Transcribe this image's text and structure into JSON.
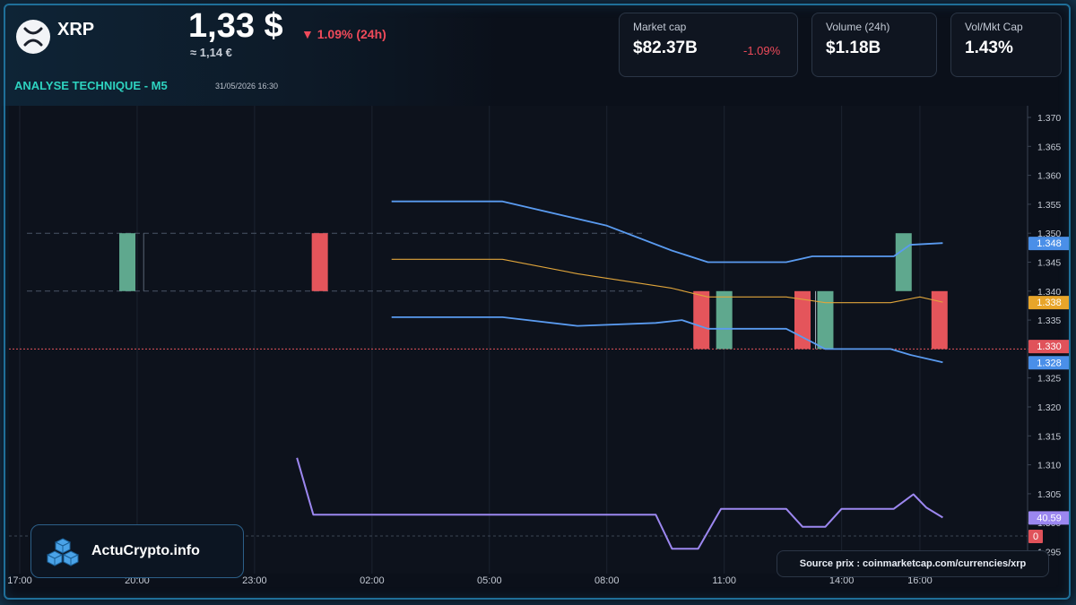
{
  "header": {
    "ticker": "XRP",
    "price": "1,33 $",
    "price_eur": "≈ 1,14 €",
    "change": "▼ 1.09% (24h)",
    "section_title": "ANALYSE TECHNIQUE - M5",
    "timestamp": "31/05/2026 16:30"
  },
  "stats": [
    {
      "label": "Market cap",
      "value": "$82.37B",
      "change": "-1.09%"
    },
    {
      "label": "Volume (24h)",
      "value": "$1.18B"
    },
    {
      "label": "Vol/Mkt Cap",
      "value": "1.43%"
    }
  ],
  "brand": {
    "name": "ActuCrypto.info"
  },
  "source": {
    "text": "Source prix : coinmarketcap.com/currencies/xrp"
  },
  "colors": {
    "up": "#5fa88e",
    "down": "#e4555b",
    "bollinger": "#5a9bf0",
    "ma": "#e0a53b",
    "rsi": "#9c87f0",
    "accent": "#2ed3c0"
  },
  "chart_data": {
    "type": "candlestick",
    "x_ticks": [
      "17:00",
      "20:00",
      "23:00",
      "02:00",
      "05:00",
      "08:00",
      "11:00",
      "14:00",
      "16:00"
    ],
    "y_ticks": [
      1.37,
      1.365,
      1.36,
      1.355,
      1.35,
      1.345,
      1.34,
      1.335,
      1.33,
      1.325,
      1.32,
      1.315,
      1.31,
      1.305,
      1.3,
      1.295
    ],
    "y_tick_labels": [
      "1.370",
      "1.365",
      "1.360",
      "1.355",
      "1.350",
      "1.345",
      "1.340",
      "1.335",
      "1.330",
      "1.325",
      "1.320",
      "1.315",
      "1.310",
      "1.305",
      "1.300",
      "1.295"
    ],
    "ylim": [
      1.2935,
      1.3722
    ],
    "candles": [
      {
        "t": "19:45",
        "open": 1.34,
        "close": 1.35
      },
      {
        "t": "00:40",
        "open": 1.35,
        "close": 1.34
      },
      {
        "t": "10:25",
        "open": 1.34,
        "close": 1.33
      },
      {
        "t": "11:00",
        "open": 1.33,
        "close": 1.34
      },
      {
        "t": "13:00",
        "open": 1.34,
        "close": 1.33
      },
      {
        "t": "13:35",
        "open": 1.33,
        "close": 1.34
      },
      {
        "t": "15:35",
        "open": 1.34,
        "close": 1.35
      },
      {
        "t": "16:30",
        "open": 1.34,
        "close": 1.33
      }
    ],
    "bollinger_upper": [
      {
        "t": "02:30",
        "v": 1.3555
      },
      {
        "t": "05:20",
        "v": 1.3555
      },
      {
        "t": "08:00",
        "v": 1.3513
      },
      {
        "t": "09:40",
        "v": 1.347
      },
      {
        "t": "10:35",
        "v": 1.345
      },
      {
        "t": "12:35",
        "v": 1.345
      },
      {
        "t": "13:15",
        "v": 1.346
      },
      {
        "t": "14:00",
        "v": 1.346
      },
      {
        "t": "15:20",
        "v": 1.346
      },
      {
        "t": "15:45",
        "v": 1.348
      },
      {
        "t": "16:35",
        "v": 1.3483
      }
    ],
    "ma": [
      {
        "t": "02:30",
        "v": 1.3455
      },
      {
        "t": "05:20",
        "v": 1.3455
      },
      {
        "t": "07:15",
        "v": 1.343
      },
      {
        "t": "09:40",
        "v": 1.3405
      },
      {
        "t": "10:35",
        "v": 1.339
      },
      {
        "t": "12:35",
        "v": 1.339
      },
      {
        "t": "13:35",
        "v": 1.338
      },
      {
        "t": "15:15",
        "v": 1.338
      },
      {
        "t": "16:00",
        "v": 1.339
      },
      {
        "t": "16:35",
        "v": 1.3381
      }
    ],
    "bollinger_lower": [
      {
        "t": "02:30",
        "v": 1.3355
      },
      {
        "t": "05:20",
        "v": 1.3355
      },
      {
        "t": "07:15",
        "v": 1.334
      },
      {
        "t": "09:15",
        "v": 1.3345
      },
      {
        "t": "09:55",
        "v": 1.335
      },
      {
        "t": "10:35",
        "v": 1.3335
      },
      {
        "t": "12:35",
        "v": 1.3335
      },
      {
        "t": "13:35",
        "v": 1.33
      },
      {
        "t": "15:15",
        "v": 1.33
      },
      {
        "t": "15:45",
        "v": 1.329
      },
      {
        "t": "16:35",
        "v": 1.3277
      }
    ],
    "current_price_line": 1.33,
    "price_levels": [
      1.35,
      1.34
    ],
    "rsi": [
      {
        "t": "00:05",
        "v": 1.3112
      },
      {
        "t": "00:30",
        "v": 1.3014
      },
      {
        "t": "09:15",
        "v": 1.3014
      },
      {
        "t": "09:40",
        "v": 1.2955
      },
      {
        "t": "10:20",
        "v": 1.2955
      },
      {
        "t": "10:55",
        "v": 1.3024
      },
      {
        "t": "12:35",
        "v": 1.3024
      },
      {
        "t": "13:00",
        "v": 1.2993
      },
      {
        "t": "13:35",
        "v": 1.2993
      },
      {
        "t": "14:00",
        "v": 1.3024
      },
      {
        "t": "15:20",
        "v": 1.3024
      },
      {
        "t": "15:50",
        "v": 1.3049
      },
      {
        "t": "16:10",
        "v": 1.3026
      },
      {
        "t": "16:35",
        "v": 1.3009
      }
    ],
    "price_tags": [
      {
        "label": "1.348",
        "v": 1.3483,
        "color": "#4a8fe8"
      },
      {
        "label": "1.338",
        "v": 1.3381,
        "color": "#e8a52a"
      },
      {
        "label": "1.330",
        "v": 1.3305,
        "color": "#e0525a"
      },
      {
        "label": "1.328",
        "v": 1.3277,
        "color": "#4a8fe8"
      },
      {
        "label": "40.59",
        "v": 1.3009,
        "color": "#9b87f0"
      },
      {
        "label": "0",
        "v": 1.2977,
        "color": "#e0525a"
      }
    ]
  }
}
